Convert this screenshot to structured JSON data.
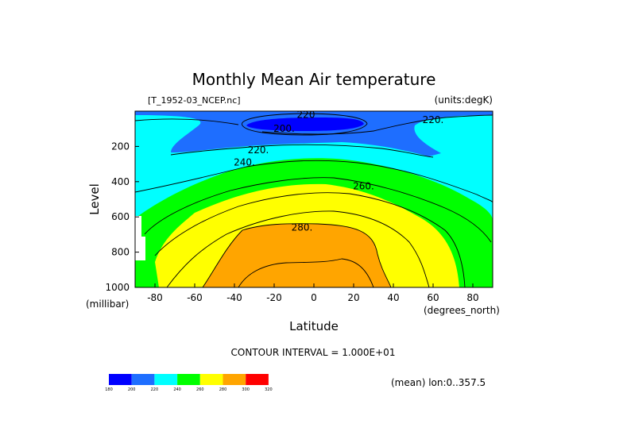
{
  "chart_data": {
    "type": "heatmap",
    "title": "Monthly Mean Air temperature",
    "source_label": "[T_1952-03_NCEP.nc]",
    "units_label": "(units:degK)",
    "xlabel": "Latitude",
    "xunit_label": "(degrees_north)",
    "ylabel": "Level",
    "yunit_label": "(millibar)",
    "xlim": [
      -90,
      90
    ],
    "ylim": [
      1000,
      0
    ],
    "x_ticks": [
      -80,
      -60,
      -40,
      -20,
      0,
      20,
      40,
      60,
      80
    ],
    "x_tick_labels": [
      "-80",
      "-60",
      "-40",
      "-20",
      "0",
      "20",
      "40",
      "60",
      "80"
    ],
    "y_ticks": [
      200,
      400,
      600,
      800,
      1000
    ],
    "y_tick_labels": [
      "200",
      "400",
      "600",
      "800",
      "1000"
    ],
    "contour_interval_text": "CONTOUR INTERVAL = 1.000E+01",
    "mean_note": "(mean) lon:0..357.5",
    "contour_labels": [
      {
        "text": "220",
        "lat": -4,
        "lev": 20
      },
      {
        "text": "220.",
        "lat": 60,
        "lev": 50
      },
      {
        "text": "200.",
        "lat": -15,
        "lev": 100
      },
      {
        "text": "220.",
        "lat": -28,
        "lev": 220
      },
      {
        "text": "240.",
        "lat": -35,
        "lev": 290
      },
      {
        "text": "260.",
        "lat": 25,
        "lev": 425
      },
      {
        "text": "280.",
        "lat": -6,
        "lev": 660
      }
    ],
    "colorbar": {
      "levels": [
        "180",
        "200",
        "220",
        "240",
        "260",
        "280",
        "300",
        "320"
      ],
      "colors": [
        "#0000ff",
        "#1e6eff",
        "#00ffff",
        "#00ff00",
        "#ffff00",
        "#ffa500",
        "#ff0000"
      ]
    },
    "grid": false,
    "legend": "colorbar bottom-left"
  }
}
